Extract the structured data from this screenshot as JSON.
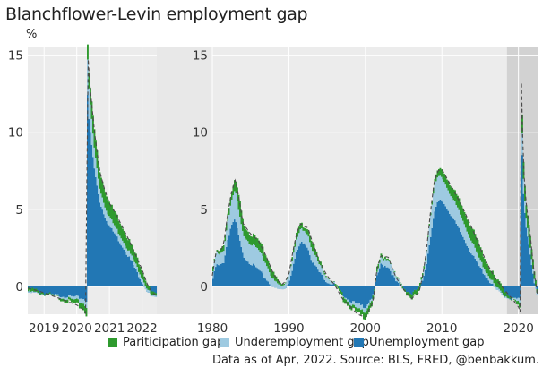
{
  "title": "Blanchflower-Levin employment gap",
  "unit_label": "%",
  "colors": {
    "participation": "#2e9a2e",
    "underemployment": "#9ecae1",
    "unemployment": "#2277b4",
    "panel_bg": "#ececec",
    "highlight": "#d2d2d2",
    "grid": "#ffffff"
  },
  "legend": [
    {
      "label": "Pariticipation gap",
      "color": "#2e9a2e"
    },
    {
      "label": "Underemployment gap",
      "color": "#9ecae1"
    },
    {
      "label": "Unemployment gap",
      "color": "#2277b4"
    }
  ],
  "source_note": "Data as of Apr, 2022. Source: BLS, FRED, @benbakkum.",
  "chart_data": [
    {
      "type": "area",
      "panel": "zoom",
      "title": "",
      "xlabel": "",
      "ylabel": "%",
      "xlim": [
        2018.5,
        2022.45
      ],
      "ylim": [
        -1.8,
        15.5
      ],
      "xticks": [
        2019,
        2020,
        2021,
        2022
      ],
      "xtick_labels": [
        "2019",
        "2020",
        "2021",
        "2022"
      ],
      "yticks": [
        0,
        5,
        10,
        15
      ],
      "ytick_labels": [
        "0",
        "5",
        "10",
        "15"
      ],
      "grid": true,
      "series": [
        {
          "name": "Unemployment gap",
          "x": [
            2018.5,
            2019.0,
            2019.5,
            2020.0,
            2020.2,
            2020.29,
            2020.33,
            2020.37,
            2020.45,
            2020.55,
            2020.7,
            2020.85,
            2021.0,
            2021.2,
            2021.4,
            2021.6,
            2021.8,
            2022.0,
            2022.15,
            2022.3,
            2022.45
          ],
          "values": [
            -0.4,
            -0.5,
            -0.6,
            -0.7,
            -0.8,
            -0.9,
            12.5,
            10.8,
            9.2,
            7.4,
            5.5,
            4.6,
            3.9,
            3.3,
            2.6,
            1.9,
            1.1,
            0.3,
            -0.3,
            -0.7,
            -0.8
          ]
        },
        {
          "name": "Underemployment gap",
          "x": [
            2018.5,
            2019.0,
            2019.5,
            2020.0,
            2020.2,
            2020.29,
            2020.33,
            2020.37,
            2020.45,
            2020.55,
            2020.7,
            2020.85,
            2021.0,
            2021.2,
            2021.4,
            2021.6,
            2021.8,
            2022.0,
            2022.15,
            2022.3,
            2022.45
          ],
          "values": [
            0.1,
            0.0,
            -0.1,
            -0.2,
            -0.3,
            -0.4,
            2.3,
            2.0,
            1.7,
            1.3,
            0.9,
            0.7,
            0.6,
            0.5,
            0.45,
            0.4,
            0.35,
            0.3,
            0.2,
            0.1,
            0.1
          ]
        },
        {
          "name": "Pariticipation gap",
          "x": [
            2018.5,
            2019.0,
            2019.5,
            2020.0,
            2020.2,
            2020.29,
            2020.33,
            2020.37,
            2020.45,
            2020.55,
            2020.7,
            2020.85,
            2021.0,
            2021.2,
            2021.4,
            2021.6,
            2021.8,
            2022.0,
            2022.15,
            2022.3,
            2022.45
          ],
          "values": [
            0.2,
            0.1,
            -0.1,
            -0.3,
            -0.4,
            -0.5,
            1.0,
            1.0,
            1.1,
            1.2,
            1.1,
            1.0,
            0.9,
            0.9,
            0.8,
            0.7,
            0.6,
            0.5,
            0.3,
            0.2,
            0.1
          ]
        }
      ]
    },
    {
      "type": "area",
      "panel": "main",
      "title": "",
      "xlabel": "",
      "ylabel": "",
      "xlim": [
        1980,
        2022.5
      ],
      "ylim": [
        -1.8,
        15.5
      ],
      "xticks": [
        1980,
        1990,
        2000,
        2010,
        2020
      ],
      "xtick_labels": [
        "1980",
        "1990",
        "2000",
        "2010",
        "2020"
      ],
      "yticks": [
        0,
        5,
        10,
        15
      ],
      "ytick_labels": [
        "0",
        "5",
        "10",
        "15"
      ],
      "grid": true,
      "highlight_range": [
        2018.5,
        2022.5
      ],
      "series": [
        {
          "name": "Unemployment gap",
          "x": [
            1980,
            1980.5,
            1981,
            1981.5,
            1982,
            1982.5,
            1983,
            1983.5,
            1984,
            1985,
            1986,
            1987,
            1988,
            1989,
            1989.5,
            1990,
            1990.5,
            1991,
            1991.5,
            1992,
            1992.5,
            1993,
            1994,
            1995,
            1996,
            1997,
            1998,
            1999,
            2000,
            2001,
            2001.5,
            2002,
            2003,
            2003.5,
            2004,
            2005,
            2006,
            2007,
            2007.5,
            2008,
            2008.5,
            2009,
            2009.5,
            2010,
            2011,
            2012,
            2013,
            2014,
            2015,
            2016,
            2017,
            2018,
            2019,
            2020,
            2020.29,
            2020.33,
            2020.37,
            2020.5,
            2020.7,
            2021,
            2021.5,
            2022,
            2022.5
          ],
          "values": [
            0.3,
            1.4,
            1.3,
            1.6,
            3.0,
            4.0,
            4.3,
            3.1,
            2.0,
            1.5,
            1.1,
            0.5,
            -0.1,
            -0.2,
            -0.1,
            0.3,
            1.2,
            2.2,
            2.8,
            2.9,
            2.5,
            1.7,
            0.9,
            0.3,
            0.1,
            -0.5,
            -0.9,
            -1.2,
            -1.3,
            -0.6,
            0.6,
            1.4,
            1.3,
            0.8,
            0.3,
            -0.2,
            -0.5,
            -0.3,
            0.4,
            1.5,
            3.2,
            4.7,
            5.5,
            5.6,
            4.8,
            3.9,
            3.0,
            2.0,
            1.2,
            0.5,
            -0.2,
            -0.6,
            -0.8,
            -0.8,
            -0.9,
            12.5,
            10.8,
            8.0,
            5.5,
            3.9,
            2.3,
            0.3,
            -0.8
          ]
        },
        {
          "name": "Underemployment gap",
          "x": [
            1980,
            1980.5,
            1981,
            1981.5,
            1982,
            1982.5,
            1983,
            1983.5,
            1984,
            1985,
            1986,
            1987,
            1988,
            1989,
            1989.5,
            1990,
            1990.5,
            1991,
            1991.5,
            1992,
            1992.5,
            1993,
            1994,
            1995,
            1996,
            1997,
            1998,
            1999,
            2000,
            2001,
            2001.5,
            2002,
            2003,
            2003.5,
            2004,
            2005,
            2006,
            2007,
            2007.5,
            2008,
            2008.5,
            2009,
            2009.5,
            2010,
            2011,
            2012,
            2013,
            2014,
            2015,
            2016,
            2017,
            2018,
            2019,
            2020,
            2020.29,
            2020.33,
            2020.37,
            2020.5,
            2020.7,
            2021,
            2021.5,
            2022,
            2022.5
          ],
          "values": [
            0.8,
            0.8,
            0.7,
            0.8,
            1.2,
            1.6,
            1.9,
            1.6,
            1.4,
            1.3,
            1.3,
            1.0,
            0.5,
            0.2,
            0.3,
            0.5,
            0.7,
            0.8,
            0.9,
            0.8,
            0.9,
            0.8,
            0.5,
            0.3,
            0.1,
            0.0,
            -0.2,
            -0.3,
            -0.3,
            -0.1,
            0.2,
            0.4,
            0.5,
            0.4,
            0.3,
            0.1,
            0.0,
            0.2,
            0.5,
            0.9,
            1.4,
            1.7,
            1.6,
            1.5,
            1.3,
            1.2,
            1.0,
            0.8,
            0.5,
            0.3,
            0.2,
            0.1,
            0.0,
            -0.2,
            -0.4,
            2.3,
            2.0,
            1.3,
            0.9,
            0.6,
            0.45,
            0.3,
            0.1
          ]
        },
        {
          "name": "Pariticipation gap",
          "x": [
            1980,
            1980.5,
            1981,
            1981.5,
            1982,
            1982.5,
            1983,
            1983.5,
            1984,
            1985,
            1986,
            1987,
            1988,
            1989,
            1989.5,
            1990,
            1990.5,
            1991,
            1991.5,
            1992,
            1992.5,
            1993,
            1994,
            1995,
            1996,
            1997,
            1998,
            1999,
            2000,
            2001,
            2001.5,
            2002,
            2003,
            2003.5,
            2004,
            2005,
            2006,
            2007,
            2007.5,
            2008,
            2008.5,
            2009,
            2009.5,
            2010,
            2011,
            2012,
            2013,
            2014,
            2015,
            2016,
            2017,
            2018,
            2019,
            2020,
            2020.29,
            2020.33,
            2020.37,
            2020.5,
            2020.7,
            2021,
            2021.5,
            2022,
            2022.5
          ],
          "values": [
            -0.4,
            0.1,
            0.2,
            0.4,
            0.5,
            0.5,
            0.7,
            1.0,
            0.7,
            0.6,
            0.6,
            0.5,
            0.4,
            0.1,
            0.1,
            0.0,
            0.3,
            0.4,
            0.4,
            0.2,
            0.4,
            0.5,
            0.2,
            0.1,
            -0.1,
            -0.3,
            -0.2,
            -0.3,
            -0.4,
            -0.3,
            0.3,
            0.2,
            0.1,
            0.0,
            0.0,
            -0.1,
            -0.3,
            -0.3,
            -0.2,
            0.0,
            0.2,
            0.4,
            0.4,
            0.5,
            0.6,
            0.7,
            0.8,
            0.9,
            0.8,
            0.6,
            0.5,
            0.4,
            0.1,
            -0.3,
            -0.5,
            1.0,
            1.0,
            1.2,
            1.1,
            0.9,
            0.8,
            0.5,
            0.1
          ]
        }
      ]
    }
  ]
}
